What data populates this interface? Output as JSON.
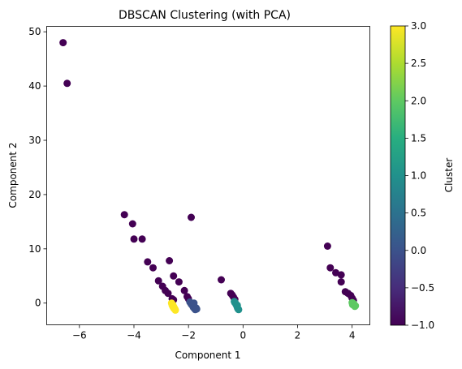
{
  "chart_data": {
    "type": "scatter",
    "title": "DBSCAN Clustering (with PCA)",
    "xlabel": "Component 1",
    "ylabel": "Component 2",
    "xlim": [
      -7.2,
      4.65
    ],
    "ylim": [
      -4,
      51
    ],
    "xticks": [
      -6,
      -4,
      -2,
      0,
      2,
      4
    ],
    "yticks": [
      0,
      10,
      20,
      30,
      40,
      50
    ],
    "grid": false,
    "colormap": "viridis",
    "colorbar": {
      "label": "Cluster",
      "range": [
        -1.0,
        3.0
      ],
      "ticks": [
        -1.0,
        -0.5,
        0.0,
        0.5,
        1.0,
        1.5,
        2.0,
        2.5,
        3.0
      ],
      "tick_labels": [
        "−1.0",
        "−0.5",
        "0.0",
        "0.5",
        "1.0",
        "1.5",
        "2.0",
        "2.5",
        "3.0"
      ]
    },
    "series": [
      {
        "cluster": -1,
        "color": "#440154",
        "points": [
          [
            -6.6,
            48.0
          ],
          [
            -6.45,
            40.5
          ],
          [
            -4.35,
            16.3
          ],
          [
            -4.05,
            14.6
          ],
          [
            -4.0,
            11.8
          ],
          [
            -3.7,
            11.8
          ],
          [
            -3.5,
            7.6
          ],
          [
            -3.3,
            6.5
          ],
          [
            -3.1,
            4.1
          ],
          [
            -2.95,
            3.1
          ],
          [
            -2.85,
            2.3
          ],
          [
            -2.75,
            1.8
          ],
          [
            -2.7,
            7.8
          ],
          [
            -2.55,
            5.0
          ],
          [
            -2.35,
            3.9
          ],
          [
            -2.15,
            2.3
          ],
          [
            -2.05,
            1.2
          ],
          [
            -1.9,
            15.8
          ],
          [
            -0.8,
            4.3
          ],
          [
            -0.45,
            1.8
          ],
          [
            -0.4,
            1.5
          ],
          [
            -0.35,
            1.1
          ],
          [
            3.1,
            10.5
          ],
          [
            3.2,
            6.5
          ],
          [
            3.4,
            5.6
          ],
          [
            3.6,
            5.2
          ],
          [
            3.6,
            3.9
          ],
          [
            3.75,
            2.1
          ],
          [
            3.85,
            1.8
          ],
          [
            3.95,
            1.4
          ],
          [
            4.0,
            0.9
          ],
          [
            4.05,
            0.5
          ],
          [
            -2.6,
            0.8
          ],
          [
            -2.55,
            0.6
          ],
          [
            -2.0,
            0.8
          ],
          [
            -0.3,
            0.7
          ]
        ]
      },
      {
        "cluster": 0,
        "color": "#3b528b",
        "points": [
          [
            -1.95,
            0.2
          ],
          [
            -1.9,
            -0.2
          ],
          [
            -1.85,
            -0.5
          ],
          [
            -1.82,
            -0.8
          ],
          [
            -1.78,
            -1.0
          ],
          [
            -1.75,
            -1.2
          ],
          [
            -1.8,
            0.0
          ],
          [
            -1.72,
            -0.9
          ],
          [
            -1.7,
            -1.1
          ]
        ]
      },
      {
        "cluster": 1,
        "color": "#21918c",
        "points": [
          [
            -0.32,
            0.3
          ],
          [
            -0.28,
            0.0
          ],
          [
            -0.25,
            -0.3
          ],
          [
            -0.22,
            -0.6
          ],
          [
            -0.2,
            -0.9
          ],
          [
            -0.18,
            -1.1
          ],
          [
            -0.3,
            0.1
          ],
          [
            -0.16,
            -1.2
          ],
          [
            -0.21,
            -0.4
          ]
        ]
      },
      {
        "cluster": 2,
        "color": "#5ec962",
        "points": [
          [
            4.0,
            0.1
          ],
          [
            4.05,
            -0.2
          ],
          [
            4.08,
            -0.4
          ],
          [
            4.1,
            -0.6
          ],
          [
            4.02,
            -0.3
          ],
          [
            4.12,
            -0.5
          ],
          [
            4.06,
            -0.1
          ]
        ]
      },
      {
        "cluster": 3,
        "color": "#fde725",
        "points": [
          [
            -2.62,
            0.0
          ],
          [
            -2.58,
            -0.3
          ],
          [
            -2.55,
            -0.6
          ],
          [
            -2.52,
            -0.9
          ],
          [
            -2.5,
            -1.1
          ],
          [
            -2.48,
            -1.3
          ],
          [
            -2.6,
            -0.4
          ],
          [
            -2.53,
            -1.0
          ],
          [
            -2.57,
            -0.7
          ]
        ]
      }
    ]
  }
}
